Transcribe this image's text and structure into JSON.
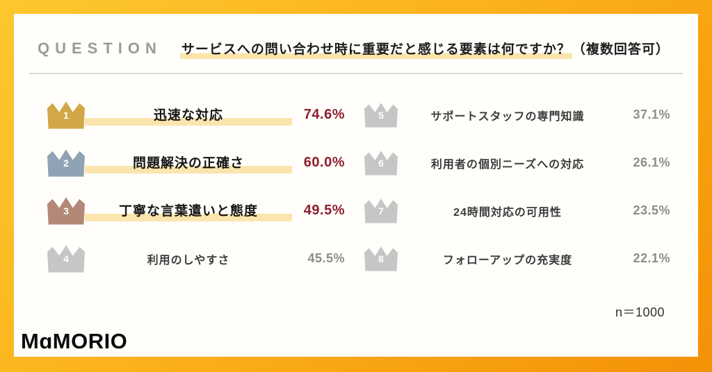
{
  "frame": {
    "border_gradient_from": "#FDC72E",
    "border_gradient_to": "#F49106",
    "card_background": "#FFFEFA"
  },
  "header": {
    "eyebrow": "QUESTION",
    "question_highlighted": "サービスへの問い合わせ時に重要だと感じる要素は何ですか？",
    "question_plain": "（複数回答可）"
  },
  "ranking": {
    "highlight_color": "#FBE5AD",
    "top_value_color": "#8E1F2F",
    "other_value_color": "#8C8C8C",
    "items": [
      {
        "rank": "1",
        "label": "迅速な対応",
        "value": "74.6%",
        "crown_color": "#D2A747"
      },
      {
        "rank": "2",
        "label": "問題解決の正確さ",
        "value": "60.0%",
        "crown_color": "#8FA3B5"
      },
      {
        "rank": "3",
        "label": "丁寧な言葉遣いと態度",
        "value": "49.5%",
        "crown_color": "#B38877"
      },
      {
        "rank": "4",
        "label": "利用のしやすさ",
        "value": "45.5%",
        "crown_color": "#C6C6C6"
      },
      {
        "rank": "5",
        "label": "サポートスタッフの専門知識",
        "value": "37.1%",
        "crown_color": "#C6C6C6"
      },
      {
        "rank": "6",
        "label": "利用者の個別ニーズへの対応",
        "value": "26.1%",
        "crown_color": "#C6C6C6"
      },
      {
        "rank": "7",
        "label": "24時間対応の可用性",
        "value": "23.5%",
        "crown_color": "#C6C6C6"
      },
      {
        "rank": "8",
        "label": "フォローアップの充実度",
        "value": "22.1%",
        "crown_color": "#C6C6C6"
      }
    ]
  },
  "footer": {
    "sample_size": "n＝1000",
    "logo": "MɑMORIO"
  },
  "chart_data": {
    "type": "table",
    "title": "サービスへの問い合わせ時に重要だと感じる要素は何ですか？（複数回答可）",
    "categories": [
      "迅速な対応",
      "問題解決の正確さ",
      "丁寧な言葉遣いと態度",
      "利用のしやすさ",
      "サポートスタッフの専門知識",
      "利用者の個別ニーズへの対応",
      "24時間対応の可用性",
      "フォローアップの充実度"
    ],
    "values": [
      74.6,
      60.0,
      49.5,
      45.5,
      37.1,
      26.1,
      23.5,
      22.1
    ],
    "unit": "%",
    "sample_size": 1000,
    "notes": "ranked multiple-answer survey result; ranks 1-3 emphasized with colored crowns and dark-red percentages"
  }
}
